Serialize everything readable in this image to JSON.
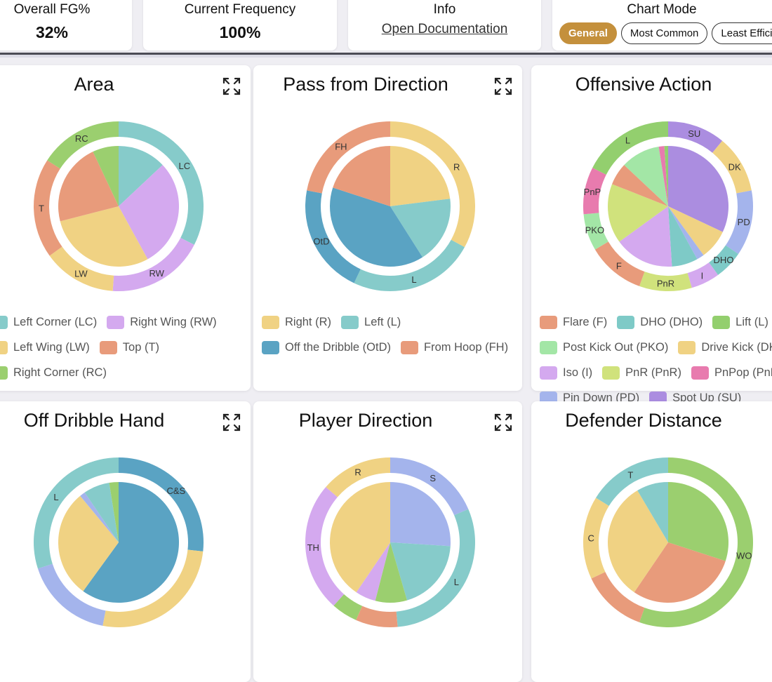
{
  "summary": {
    "fg": {
      "label": "Overall FG%",
      "value": "32%"
    },
    "frequency": {
      "label": "Current Frequency",
      "value": "100%"
    },
    "info": {
      "label": "Info",
      "link": "Open Documentation"
    },
    "chart_mode": {
      "label": "Chart Mode",
      "options": [
        "General",
        "Most Common",
        "Least Efficient"
      ],
      "selected": "General",
      "accent": "#c4903c"
    }
  },
  "icons": {
    "expand": "expand-arrows-icon"
  },
  "chart_data": [
    {
      "type": "pie",
      "title": "Area",
      "outer": [
        {
          "label": "LC",
          "value": 32.5,
          "color": "#86cbca"
        },
        {
          "label": "RW",
          "value": 18.6,
          "color": "#d4a9ef"
        },
        {
          "label": "LW",
          "value": 14,
          "color": "#f0d283"
        },
        {
          "label": "T",
          "value": 19,
          "color": "#e89b7b"
        },
        {
          "label": "RC",
          "value": 15.9,
          "color": "#9bcf6f"
        }
      ],
      "inner": [
        {
          "value": 13,
          "color": "#86cbca"
        },
        {
          "value": 29,
          "color": "#d4a9ef"
        },
        {
          "value": 29,
          "color": "#f0d283"
        },
        {
          "value": 22,
          "color": "#e89b7b"
        },
        {
          "value": 7,
          "color": "#9bcf6f"
        }
      ],
      "legend": [
        {
          "label": "Left Corner (LC)",
          "color": "#86cbca"
        },
        {
          "label": "Right Wing (RW)",
          "color": "#d4a9ef"
        },
        {
          "label": "Left Wing (LW)",
          "color": "#f0d283"
        },
        {
          "label": "Top (T)",
          "color": "#e89b7b"
        },
        {
          "label": "Right Corner (RC)",
          "color": "#9bcf6f"
        }
      ]
    },
    {
      "type": "pie",
      "title": "Pass from Direction",
      "outer": [
        {
          "label": "R",
          "value": 33,
          "color": "#f0d283"
        },
        {
          "label": "L",
          "value": 24,
          "color": "#86cbca"
        },
        {
          "label": "OtD",
          "value": 21,
          "color": "#5aa3c3"
        },
        {
          "label": "FH",
          "value": 22,
          "color": "#e89b7b"
        }
      ],
      "inner": [
        {
          "value": 23,
          "color": "#f0d283"
        },
        {
          "value": 18,
          "color": "#86cbca"
        },
        {
          "value": 39,
          "color": "#5aa3c3"
        },
        {
          "value": 20,
          "color": "#e89b7b"
        }
      ],
      "legend": [
        {
          "label": "Right (R)",
          "color": "#f0d283"
        },
        {
          "label": "Left (L)",
          "color": "#86cbca"
        },
        {
          "label": "Off the Dribble (OtD)",
          "color": "#5aa3c3"
        },
        {
          "label": "From Hoop (FH)",
          "color": "#e89b7b"
        }
      ]
    },
    {
      "type": "pie",
      "title": "Offensive Action",
      "outer": [
        {
          "label": "SU",
          "value": 11,
          "color": "#ab8de0"
        },
        {
          "label": "DK",
          "value": 11,
          "color": "#f0d283"
        },
        {
          "label": "PD",
          "value": 12.5,
          "color": "#a4b4ec"
        },
        {
          "label": "DHO",
          "value": 5.5,
          "color": "#7ecac7"
        },
        {
          "label": "I",
          "value": 5.5,
          "color": "#d4a9ef"
        },
        {
          "label": "PnR",
          "value": 10,
          "color": "#d0e27c"
        },
        {
          "label": "F",
          "value": 11,
          "color": "#e89b7b"
        },
        {
          "label": "PKO",
          "value": 7,
          "color": "#a3e6a6"
        },
        {
          "label": "PnP",
          "value": 9,
          "color": "#e87bae"
        },
        {
          "label": "L",
          "value": 17.5,
          "color": "#93cf6e"
        }
      ],
      "inner": [
        {
          "value": 32,
          "color": "#ab8de0"
        },
        {
          "value": 8,
          "color": "#f0d283"
        },
        {
          "value": 2,
          "color": "#a4b4ec"
        },
        {
          "value": 7,
          "color": "#7ecac7"
        },
        {
          "value": 16,
          "color": "#d4a9ef"
        },
        {
          "value": 16,
          "color": "#d0e27c"
        },
        {
          "value": 6,
          "color": "#e89b7b"
        },
        {
          "value": 10.5,
          "color": "#a3e6a6"
        },
        {
          "value": 1.5,
          "color": "#e87bae"
        },
        {
          "value": 1,
          "color": "#93cf6e"
        }
      ],
      "legend": [
        {
          "label": "Flare (F)",
          "color": "#e89b7b"
        },
        {
          "label": "DHO (DHO)",
          "color": "#7ecac7"
        },
        {
          "label": "Lift (L)",
          "color": "#93cf6e"
        },
        {
          "label": "Post Kick Out (PKO)",
          "color": "#a3e6a6"
        },
        {
          "label": "Drive Kick (DK)",
          "color": "#f0d283"
        },
        {
          "label": "Iso (I)",
          "color": "#d4a9ef"
        },
        {
          "label": "PnR (PnR)",
          "color": "#d0e27c"
        },
        {
          "label": "PnPop (PnP)",
          "color": "#e87bae"
        },
        {
          "label": "Pin Down (PD)",
          "color": "#a4b4ec"
        },
        {
          "label": "Spot Up (SU)",
          "color": "#ab8de0"
        }
      ]
    },
    {
      "type": "pie",
      "title": "Off Dribble Hand",
      "outer": [
        {
          "label": "C&S",
          "value": 26.7,
          "color": "#5aa3c3"
        },
        {
          "label": "",
          "value": 26.3,
          "color": "#f0d283"
        },
        {
          "label": "",
          "value": 17,
          "color": "#a4b4ec"
        },
        {
          "label": "L",
          "value": 30,
          "color": "#86cbca"
        }
      ],
      "inner": [
        {
          "value": 60,
          "color": "#5aa3c3"
        },
        {
          "value": 29,
          "color": "#f0d283"
        },
        {
          "value": 1.5,
          "color": "#a4b4ec"
        },
        {
          "value": 7,
          "color": "#86cbca"
        },
        {
          "value": 2.5,
          "color": "#9bcf6f"
        }
      ],
      "legend": []
    },
    {
      "type": "pie",
      "title": "Player Direction",
      "outer": [
        {
          "label": "S",
          "value": 18.6,
          "color": "#a4b4ec"
        },
        {
          "label": "L",
          "value": 30,
          "color": "#86cbca"
        },
        {
          "label": "",
          "value": 8,
          "color": "#e89b7b"
        },
        {
          "label": "",
          "value": 5,
          "color": "#9bcf6f"
        },
        {
          "label": "TH",
          "value": 24.7,
          "color": "#d4a9ef"
        },
        {
          "label": "R",
          "value": 13.7,
          "color": "#f0d283"
        }
      ],
      "inner": [
        {
          "value": 26,
          "color": "#a4b4ec"
        },
        {
          "value": 19.5,
          "color": "#86cbca"
        },
        {
          "value": 8.5,
          "color": "#9bcf6f"
        },
        {
          "value": 5.5,
          "color": "#d4a9ef"
        },
        {
          "value": 40.5,
          "color": "#f0d283"
        }
      ],
      "legend": []
    },
    {
      "type": "pie",
      "title": "Defender Distance",
      "outer": [
        {
          "label": "WO",
          "value": 55.5,
          "color": "#9bcf6f"
        },
        {
          "label": "",
          "value": 12.5,
          "color": "#e89b7b"
        },
        {
          "label": "C",
          "value": 15.8,
          "color": "#f0d283"
        },
        {
          "label": "T",
          "value": 16.2,
          "color": "#86cbca"
        }
      ],
      "inner": [
        {
          "value": 30,
          "color": "#9bcf6f"
        },
        {
          "value": 29.5,
          "color": "#e89b7b"
        },
        {
          "value": 32,
          "color": "#f0d283"
        },
        {
          "value": 8.5,
          "color": "#86cbca"
        }
      ],
      "legend": []
    }
  ]
}
